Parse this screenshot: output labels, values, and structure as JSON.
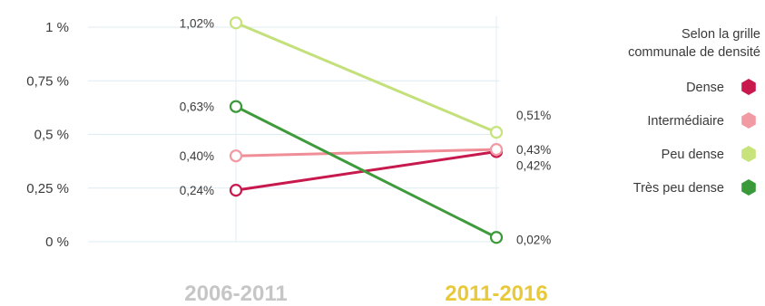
{
  "chart_data": {
    "type": "line",
    "categories": [
      "2006-2011",
      "2011-2016"
    ],
    "category_colors": [
      "#c6c6c6",
      "#e8c93a"
    ],
    "ylim": [
      0,
      1
    ],
    "yticks": [
      {
        "value": 0,
        "label": "0 %"
      },
      {
        "value": 0.25,
        "label": "0,25 %"
      },
      {
        "value": 0.5,
        "label": "0,5 %"
      },
      {
        "value": 0.75,
        "label": "0,75 %"
      },
      {
        "value": 1,
        "label": "1 %"
      }
    ],
    "legend_title": [
      "Selon la grille",
      "communale de densité"
    ],
    "legend_position": "right",
    "series": [
      {
        "name": "Dense",
        "values": [
          0.24,
          0.42
        ],
        "labels": [
          "0,24%",
          "0,42%"
        ],
        "color": "#c8194f",
        "marker": "#c8194f"
      },
      {
        "name": "Intermédiaire",
        "values": [
          0.4,
          0.43
        ],
        "labels": [
          "0,40%",
          "0,43%"
        ],
        "color": "#f08e97",
        "marker": "#f29aa3"
      },
      {
        "name": "Peu dense",
        "values": [
          1.02,
          0.51
        ],
        "labels": [
          "1,02%",
          "0,51%"
        ],
        "color": "#c3e07a",
        "marker": "#c6e37c"
      },
      {
        "name": "Très peu dense",
        "values": [
          0.63,
          0.02
        ],
        "labels": [
          "0,63%",
          "0,02%"
        ],
        "color": "#3f9a3c",
        "marker": "#3a9a3a"
      }
    ]
  }
}
